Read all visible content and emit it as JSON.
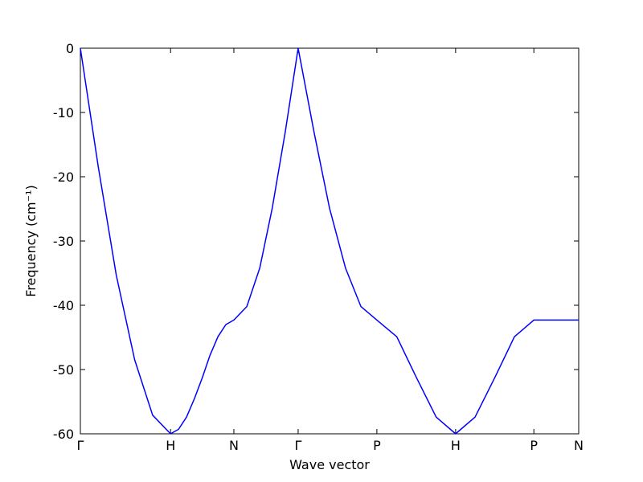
{
  "chart_data": {
    "type": "line",
    "xlabel": "Wave vector",
    "ylabel": "Frequency (cm⁻¹)",
    "x": [
      0,
      0.036,
      0.072,
      0.109,
      0.145,
      0.181,
      0.197,
      0.213,
      0.229,
      0.245,
      0.26,
      0.276,
      0.292,
      0.308,
      0.334,
      0.36,
      0.385,
      0.411,
      0.437,
      0.469,
      0.5,
      0.532,
      0.563,
      0.595,
      0.635,
      0.674,
      0.714,
      0.753,
      0.792,
      0.832,
      0.871,
      0.91,
      1.0
    ],
    "series": [
      {
        "color": "#0000ff",
        "values": [
          0,
          -18.5,
          -35.3,
          -48.5,
          -57.1,
          -60,
          -59.3,
          -57.4,
          -54.5,
          -51.2,
          -47.8,
          -44.9,
          -43.0,
          -42.3,
          -40.2,
          -34.2,
          -24.9,
          -13.1,
          0,
          -13.1,
          -24.9,
          -34.2,
          -40.2,
          -42.3,
          -44.9,
          -51.2,
          -57.4,
          -60,
          -57.4,
          -51.2,
          -44.9,
          -42.3,
          -42.3
        ]
      }
    ],
    "xlim": [
      0,
      1.0
    ],
    "xticks": [
      {
        "value": 0,
        "label": "Γ"
      },
      {
        "value": 0.181,
        "label": "H"
      },
      {
        "value": 0.308,
        "label": "N"
      },
      {
        "value": 0.437,
        "label": "Γ"
      },
      {
        "value": 0.595,
        "label": "P"
      },
      {
        "value": 0.753,
        "label": "H"
      },
      {
        "value": 0.91,
        "label": "P"
      },
      {
        "value": 1.0,
        "label": "N"
      }
    ],
    "ylim": [
      -60,
      0
    ],
    "yticks": [
      0,
      -10,
      -20,
      -30,
      -40,
      -50,
      -60
    ]
  }
}
